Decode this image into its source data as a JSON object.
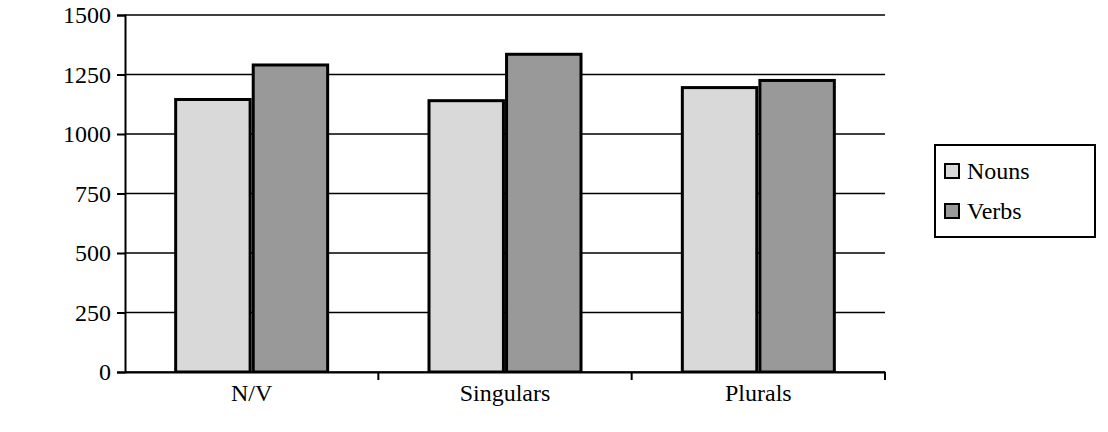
{
  "chart_data": {
    "type": "bar",
    "categories": [
      "N/V",
      "Singulars",
      "Plurals"
    ],
    "series": [
      {
        "name": "Nouns",
        "color": "#d9d9d9",
        "values": [
          1145,
          1140,
          1195
        ]
      },
      {
        "name": "Verbs",
        "color": "#999999",
        "values": [
          1290,
          1335,
          1225
        ]
      }
    ],
    "ylim": [
      0,
      1500
    ],
    "yticks": [
      0,
      250,
      500,
      750,
      1000,
      1250,
      1500
    ],
    "grid": true,
    "legend": "right"
  }
}
